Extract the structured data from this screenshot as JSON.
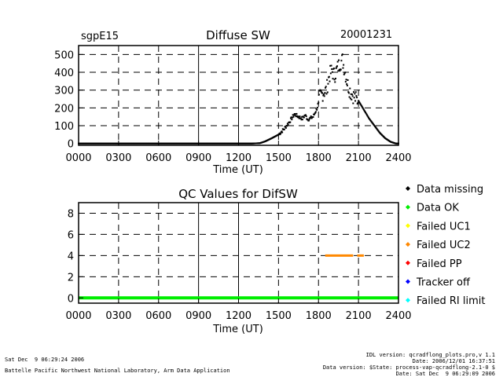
{
  "header": {
    "site": "sgpE15",
    "date": "20001231"
  },
  "chart_data": [
    {
      "type": "scatter",
      "title": "Diffuse SW",
      "xlabel": "Time (UT)",
      "ylabel": "",
      "xlim": [
        0,
        2400
      ],
      "ylim": [
        -10,
        550
      ],
      "x_ticks": [
        "0000",
        "0300",
        "0600",
        "0900",
        "1200",
        "1500",
        "1800",
        "2100",
        "2400"
      ],
      "y_ticks": [
        0,
        100,
        200,
        300,
        400,
        500
      ],
      "x_gridlines": [
        300,
        600,
        900,
        1200,
        1500,
        1800,
        2100
      ],
      "y_gridlines": [
        100,
        200,
        300,
        400,
        500
      ],
      "profile": [
        [
          0,
          0
        ],
        [
          1300,
          0
        ],
        [
          1360,
          2
        ],
        [
          1400,
          12
        ],
        [
          1450,
          30
        ],
        [
          1500,
          50
        ],
        [
          1540,
          80
        ],
        [
          1580,
          120
        ],
        [
          1620,
          165
        ],
        [
          1650,
          150
        ],
        [
          1680,
          140
        ],
        [
          1700,
          160
        ],
        [
          1720,
          135
        ],
        [
          1760,
          150
        ],
        [
          1790,
          200
        ],
        [
          1810,
          260
        ],
        [
          1840,
          290
        ],
        [
          1860,
          300
        ],
        [
          1880,
          380
        ],
        [
          1900,
          410
        ],
        [
          1920,
          380
        ],
        [
          1940,
          420
        ],
        [
          1960,
          450
        ],
        [
          1980,
          470
        ],
        [
          2000,
          400
        ],
        [
          2020,
          330
        ],
        [
          2040,
          290
        ],
        [
          2060,
          270
        ],
        [
          2080,
          250
        ],
        [
          2100,
          240
        ],
        [
          2140,
          190
        ],
        [
          2180,
          140
        ],
        [
          2220,
          100
        ],
        [
          2260,
          60
        ],
        [
          2300,
          30
        ],
        [
          2340,
          10
        ],
        [
          2380,
          0
        ],
        [
          2400,
          0
        ]
      ],
      "series": [
        {
          "color": "#000000"
        }
      ]
    },
    {
      "type": "scatter",
      "title": "QC Values for DifSW",
      "xlabel": "Time (UT)",
      "ylabel": "",
      "xlim": [
        0,
        2400
      ],
      "ylim": [
        -0.5,
        9
      ],
      "x_ticks": [
        "0000",
        "0300",
        "0600",
        "0900",
        "1200",
        "1500",
        "1800",
        "2100",
        "2400"
      ],
      "y_ticks": [
        0,
        2,
        4,
        6,
        8
      ],
      "x_gridlines": [
        300,
        600,
        900,
        1200,
        1500,
        1800,
        2100
      ],
      "y_gridlines": [
        2,
        4,
        6,
        8
      ],
      "series": [
        {
          "qc_value": 0,
          "color": "#00ee00",
          "x_range": [
            0,
            2400
          ]
        },
        {
          "qc_value": 4,
          "color": "#ff8800",
          "segments": [
            [
              1850,
              2060
            ],
            [
              2090,
              2140
            ]
          ]
        }
      ]
    }
  ],
  "legend": {
    "items": [
      {
        "label": "Data missing",
        "color": "#000000"
      },
      {
        "label": "Data OK",
        "color": "#00ee00"
      },
      {
        "label": "Failed UC1",
        "color": "#ffff00"
      },
      {
        "label": "Failed UC2",
        "color": "#ff8800"
      },
      {
        "label": "Failed PP",
        "color": "#ff0000"
      },
      {
        "label": "Tracker off",
        "color": "#0000ff"
      },
      {
        "label": "Failed RI limit",
        "color": "#00ffff"
      }
    ]
  },
  "footer": {
    "left_line1": "Sat Dec  9 06:29:24 2006",
    "left_line2": "Battelle Pacific Northwest National Laboratory, Arm Data Application",
    "right_line1": "IDL version: qcradflong_plots.pro,v 1.1",
    "right_line2": "Date: 2006/12/01 16:37:51",
    "right_line3": "Data version: $State: process-vap-qcradflong-2.1-0 $",
    "right_line4": "Date: Sat Dec  9 06:29:09 2006"
  }
}
